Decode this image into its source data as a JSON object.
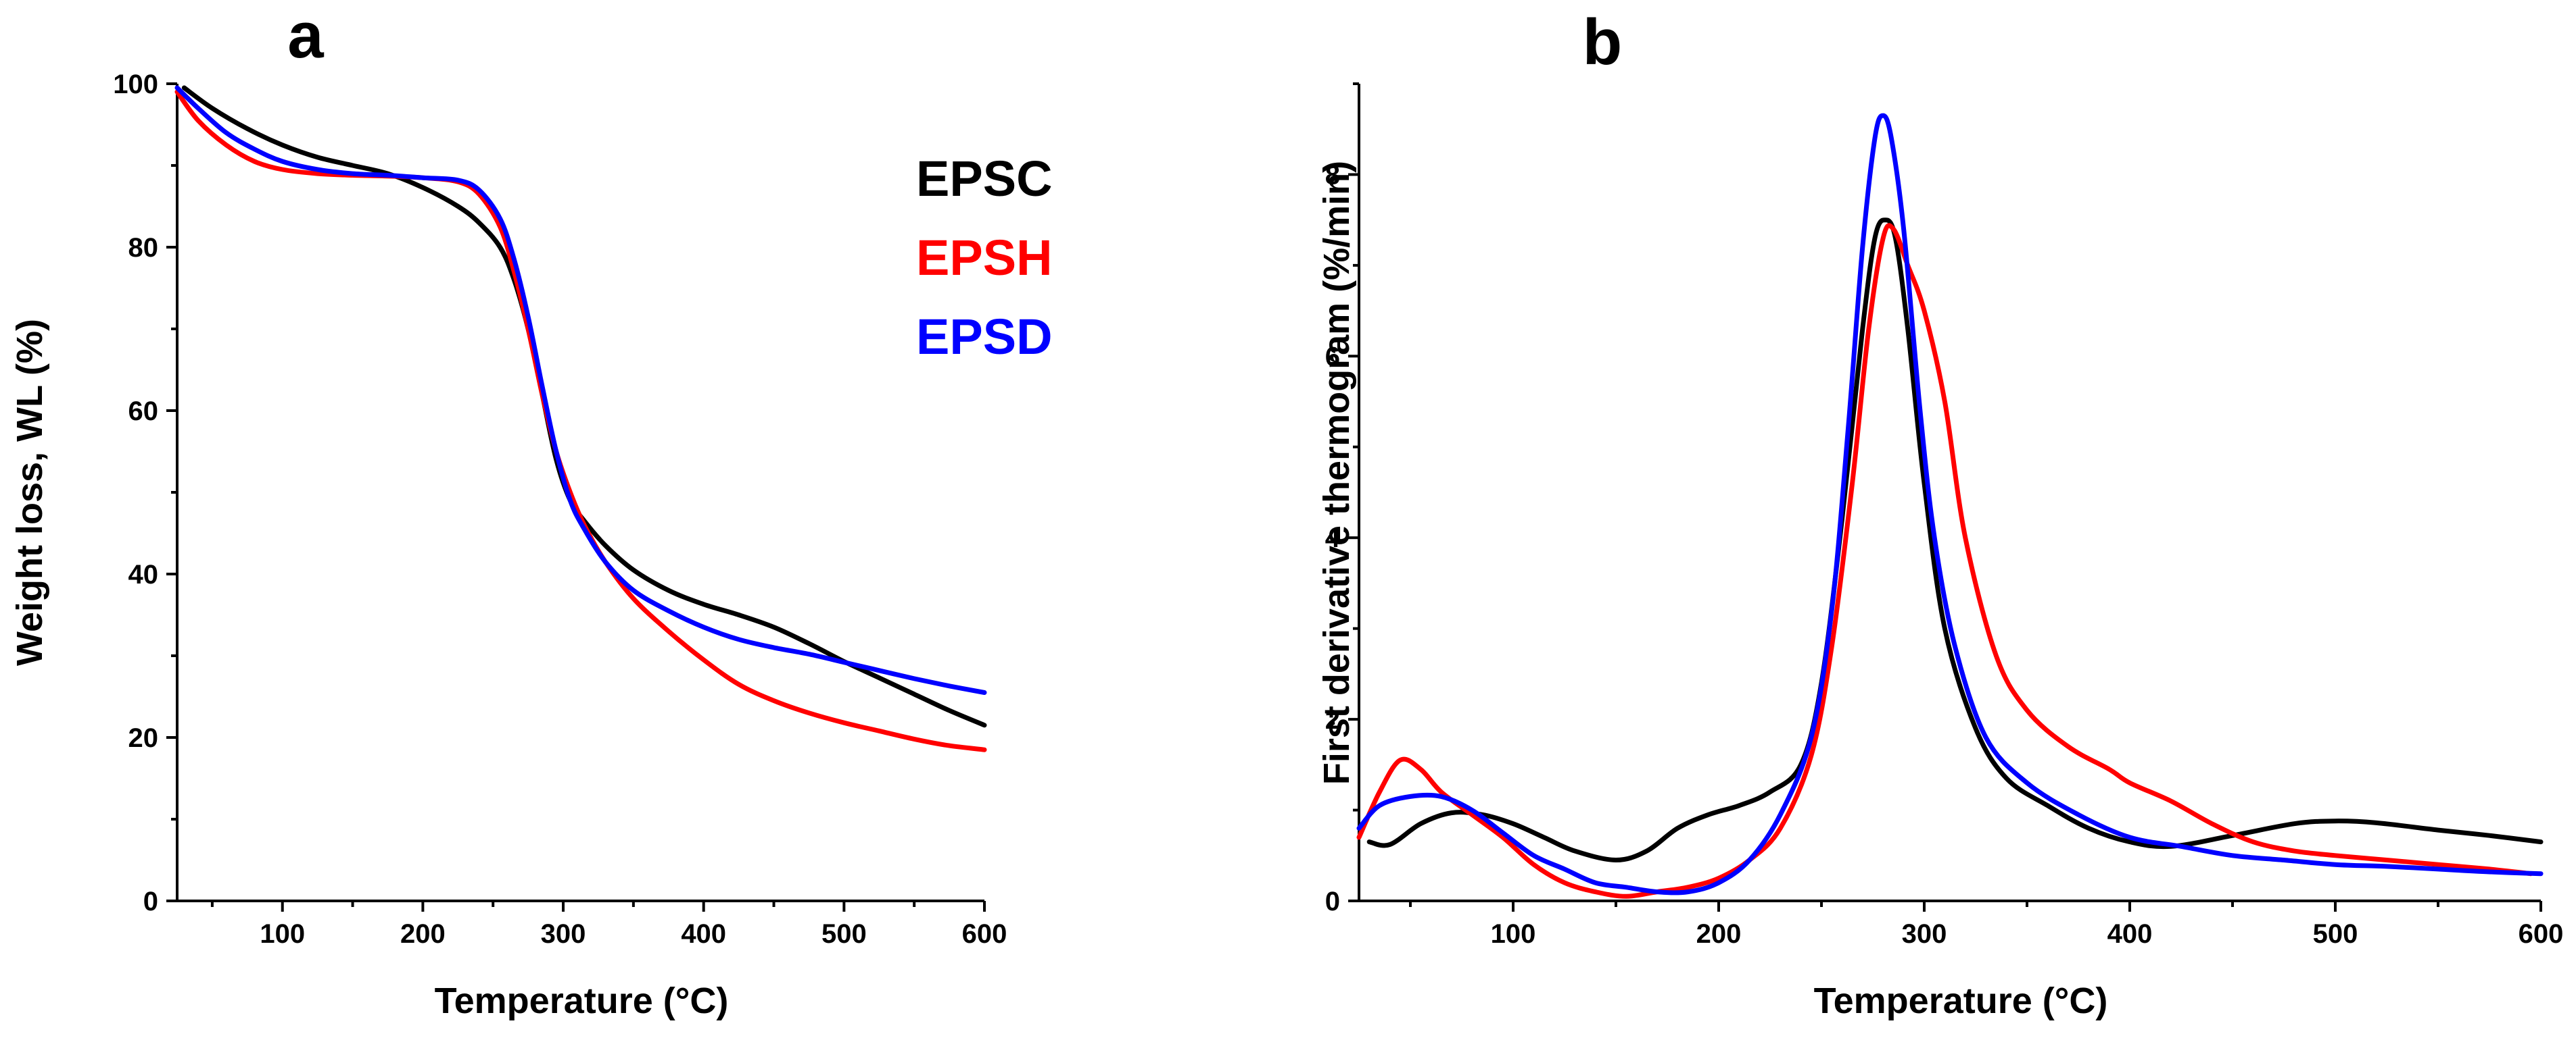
{
  "chart_data": [
    {
      "panel_label": "a",
      "type": "line",
      "title": "",
      "xlabel": "Temperature (°C)",
      "ylabel": "Weight loss, WL (%)",
      "xlim": [
        25,
        600
      ],
      "ylim": [
        0,
        100
      ],
      "xticks": [
        100,
        200,
        300,
        400,
        500,
        600
      ],
      "yticks": [
        0,
        20,
        40,
        60,
        80,
        100
      ],
      "grid": false,
      "legend": "top-right, inside plot",
      "series": [
        {
          "name": "EPSC",
          "color": "#000000",
          "x": [
            30,
            50,
            75,
            100,
            125,
            150,
            175,
            200,
            225,
            240,
            255,
            265,
            275,
            285,
            295,
            305,
            315,
            330,
            350,
            375,
            400,
            425,
            450,
            475,
            500,
            525,
            550,
            575,
            600
          ],
          "y": [
            99.5,
            97,
            94.5,
            92.5,
            91,
            90,
            89,
            87.3,
            85,
            83,
            80,
            76,
            70,
            62,
            54,
            49,
            46.5,
            43.5,
            40.5,
            38,
            36.3,
            35,
            33.5,
            31.5,
            29.3,
            27.3,
            25.3,
            23.3,
            21.5
          ]
        },
        {
          "name": "EPSH",
          "color": "#ff0000",
          "x": [
            25,
            40,
            60,
            80,
            100,
            125,
            150,
            175,
            200,
            225,
            240,
            255,
            265,
            275,
            285,
            295,
            305,
            315,
            330,
            350,
            375,
            400,
            425,
            450,
            475,
            500,
            525,
            550,
            575,
            600
          ],
          "y": [
            99,
            95.5,
            92.5,
            90.5,
            89.5,
            89,
            88.8,
            88.7,
            88.5,
            88,
            86.5,
            82.5,
            77,
            70,
            62,
            55,
            50,
            46,
            41.5,
            37,
            33,
            29.5,
            26.5,
            24.5,
            23,
            21.8,
            20.8,
            19.8,
            19,
            18.5
          ]
        },
        {
          "name": "EPSD",
          "color": "#0000ff",
          "x": [
            25,
            40,
            60,
            80,
            100,
            125,
            150,
            175,
            200,
            225,
            240,
            255,
            265,
            275,
            285,
            295,
            305,
            315,
            330,
            350,
            375,
            400,
            425,
            450,
            475,
            500,
            525,
            550,
            575,
            600
          ],
          "y": [
            99.5,
            97,
            94,
            92,
            90.5,
            89.5,
            89,
            88.8,
            88.5,
            88.2,
            87,
            83.5,
            78.5,
            71.5,
            63,
            55,
            49,
            45.5,
            41.5,
            38,
            35.5,
            33.5,
            32,
            31,
            30.2,
            29.2,
            28.2,
            27.2,
            26.3,
            25.5
          ]
        }
      ]
    },
    {
      "panel_label": "b",
      "type": "line",
      "title": "",
      "xlabel": "Temperature (°C)",
      "ylabel": "First derivative thermogram (%/min)",
      "xlim": [
        25,
        600
      ],
      "ylim": [
        0,
        9
      ],
      "xticks": [
        100,
        200,
        300,
        400,
        500,
        600
      ],
      "yticks": [
        0,
        2,
        4,
        6,
        8
      ],
      "grid": false,
      "legend": "none",
      "series": [
        {
          "name": "EPSC",
          "color": "#000000",
          "x": [
            30,
            40,
            55,
            70,
            85,
            100,
            115,
            130,
            150,
            165,
            180,
            195,
            210,
            225,
            240,
            250,
            260,
            270,
            276,
            281,
            286,
            292,
            300,
            310,
            325,
            340,
            360,
            380,
            400,
            420,
            450,
            480,
            500,
            520,
            550,
            575,
            600
          ],
          "y": [
            0.65,
            0.62,
            0.85,
            0.97,
            0.95,
            0.85,
            0.7,
            0.55,
            0.45,
            0.55,
            0.8,
            0.95,
            1.05,
            1.2,
            1.5,
            2.4,
            4.2,
            6.3,
            7.3,
            7.5,
            7.3,
            6.3,
            4.6,
            3.0,
            1.9,
            1.35,
            1.05,
            0.8,
            0.65,
            0.6,
            0.72,
            0.85,
            0.88,
            0.86,
            0.78,
            0.72,
            0.65
          ]
        },
        {
          "name": "EPSH",
          "color": "#ff0000",
          "x": [
            25,
            35,
            45,
            55,
            65,
            80,
            95,
            110,
            125,
            140,
            155,
            170,
            185,
            200,
            215,
            230,
            245,
            255,
            265,
            273,
            280,
            285,
            292,
            300,
            310,
            320,
            335,
            350,
            370,
            390,
            400,
            420,
            440,
            460,
            480,
            500,
            525,
            550,
            575,
            595
          ],
          "y": [
            0.7,
            1.2,
            1.55,
            1.45,
            1.2,
            0.95,
            0.7,
            0.4,
            0.2,
            0.1,
            0.05,
            0.1,
            0.15,
            0.25,
            0.45,
            0.8,
            1.6,
            2.8,
            4.6,
            6.3,
            7.3,
            7.4,
            7.0,
            6.5,
            5.5,
            4.0,
            2.7,
            2.1,
            1.7,
            1.45,
            1.3,
            1.1,
            0.85,
            0.65,
            0.55,
            0.5,
            0.45,
            0.4,
            0.35,
            0.3
          ]
        },
        {
          "name": "EPSD",
          "color": "#0000ff",
          "x": [
            25,
            35,
            50,
            65,
            80,
            95,
            110,
            125,
            140,
            155,
            170,
            185,
            200,
            215,
            230,
            245,
            255,
            263,
            270,
            276,
            280,
            284,
            290,
            298,
            305,
            315,
            330,
            350,
            375,
            400,
            425,
            450,
            475,
            500,
            525,
            550,
            575,
            600
          ],
          "y": [
            0.8,
            1.05,
            1.15,
            1.15,
            1.0,
            0.75,
            0.5,
            0.35,
            0.2,
            0.15,
            0.1,
            0.1,
            0.2,
            0.45,
            0.95,
            1.8,
            3.2,
            5.2,
            7.2,
            8.4,
            8.65,
            8.4,
            7.4,
            5.4,
            4.0,
            2.8,
            1.8,
            1.3,
            0.95,
            0.7,
            0.6,
            0.5,
            0.45,
            0.4,
            0.38,
            0.35,
            0.32,
            0.3
          ]
        }
      ]
    }
  ]
}
